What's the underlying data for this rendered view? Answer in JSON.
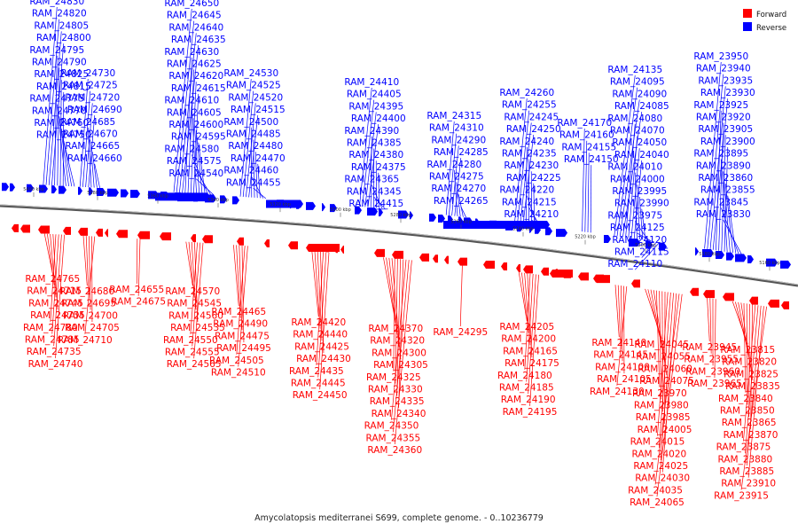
{
  "caption": "Amycolatopsis mediterranei S699, complete genome. - 0..10236779",
  "legend": {
    "forward": {
      "label": "Forward",
      "color": "#ff0000"
    },
    "reverse": {
      "label": "Reverse",
      "color": "#0000ff"
    }
  },
  "ticks": [
    "5400 kbp",
    "5380 kbp",
    "5360 kbp",
    "5340 kbp",
    "5320 kbp",
    "5300 kbp",
    "5280 kbp",
    "5260 kbp",
    "5240 kbp",
    "5220 kbp",
    "5200 kbp",
    "5180 kbp",
    "5160 kbp"
  ],
  "reverse_labels": [
    [
      "RAM_24830",
      "RAM_24820",
      "RAM_24805",
      "RAM_24800",
      "RAM_24795",
      "RAM_24790",
      "RAM_24825",
      "RAM_24815",
      "RAM_24775",
      "RAM_24770",
      "RAM_24760",
      "RAM_24750"
    ],
    [
      "RAM_24730",
      "RAM_24725",
      "RAM_24720",
      "RAM_24690",
      "RAM_24685",
      "RAM_24670",
      "RAM_24665",
      "RAM_24660"
    ],
    [
      "RAM_24650",
      "RAM_24645",
      "RAM_24640",
      "RAM_24635",
      "RAM_24630",
      "RAM_24625",
      "RAM_24620",
      "RAM_24615",
      "RAM_24610",
      "RAM_24605",
      "RAM_24600",
      "RAM_24595",
      "RAM_24580",
      "RAM_24575",
      "RAM_24540"
    ],
    [
      "RAM_24530",
      "RAM_24525",
      "RAM_24520",
      "RAM_24515",
      "RAM_24500",
      "RAM_24485",
      "RAM_24480",
      "RAM_24470",
      "RAM_24460",
      "RAM_24455"
    ],
    [
      "RAM_24410",
      "RAM_24405",
      "RAM_24395",
      "RAM_24400",
      "RAM_24390",
      "RAM_24385",
      "RAM_24380",
      "RAM_24375",
      "RAM_24365",
      "RAM_24345",
      "RAM_24415"
    ],
    [
      "RAM_24315",
      "RAM_24310",
      "RAM_24290",
      "RAM_24285",
      "RAM_24280",
      "RAM_24275",
      "RAM_24270",
      "RAM_24265"
    ],
    [
      "RAM_24260",
      "RAM_24255",
      "RAM_24245",
      "RAM_24250",
      "RAM_24240",
      "RAM_24235",
      "RAM_24230",
      "RAM_24225",
      "RAM_24220",
      "RAM_24215",
      "RAM_24210"
    ],
    [
      "RAM_24170",
      "RAM_24160",
      "RAM_24155",
      "RAM_24150"
    ],
    [
      "RAM_24135",
      "RAM_24095",
      "RAM_24090",
      "RAM_24085",
      "RAM_24080",
      "RAM_24070",
      "RAM_24050",
      "RAM_24040",
      "RAM_24010",
      "RAM_24000",
      "RAM_23995",
      "RAM_23990",
      "RAM_23975",
      "RAM_24125",
      "RAM_24120",
      "RAM_24115",
      "RAM_24110"
    ],
    [
      "RAM_23950",
      "RAM_23940",
      "RAM_23935",
      "RAM_23930",
      "RAM_23925",
      "RAM_23920",
      "RAM_23905",
      "RAM_23900",
      "RAM_23895",
      "RAM_23890",
      "RAM_23860",
      "RAM_23855",
      "RAM_23845",
      "RAM_23830"
    ]
  ],
  "forward_labels": [
    [
      "RAM_24765",
      "RAM_24715",
      "RAM_24745",
      "RAM_24755",
      "RAM_24780",
      "RAM_24785",
      "RAM_24735",
      "RAM_24740"
    ],
    [
      "RAM_24680",
      "RAM_24695",
      "RAM_24700",
      "RAM_24705",
      "RAM_24710"
    ],
    [
      "RAM_24655",
      "RAM_24675"
    ],
    [
      "RAM_24570",
      "RAM_24545",
      "RAM_24560",
      "RAM_24535",
      "RAM_24550",
      "RAM_24555",
      "RAM_24565"
    ],
    [
      "RAM_24465",
      "RAM_24490",
      "RAM_24475",
      "RAM_24495",
      "RAM_24505",
      "RAM_24510"
    ],
    [
      "RAM_24420",
      "RAM_24440",
      "RAM_24425",
      "RAM_24430",
      "RAM_24435",
      "RAM_24445",
      "RAM_24450"
    ],
    [
      "RAM_24370",
      "RAM_24320",
      "RAM_24300",
      "RAM_24305",
      "RAM_24325",
      "RAM_24330",
      "RAM_24335",
      "RAM_24340",
      "RAM_24350",
      "RAM_24355",
      "RAM_24360"
    ],
    [
      "RAM_24295"
    ],
    [
      "RAM_24205",
      "RAM_24200",
      "RAM_24165",
      "RAM_24175",
      "RAM_24180",
      "RAM_24185",
      "RAM_24190",
      "RAM_24195"
    ],
    [
      "RAM_24140",
      "RAM_24145",
      "RAM_24100",
      "RAM_24105",
      "RAM_24130"
    ],
    [
      "RAM_24045",
      "RAM_24055",
      "RAM_24060",
      "RAM_24075",
      "RAM_23970",
      "RAM_23980",
      "RAM_23985",
      "RAM_24005",
      "RAM_24015",
      "RAM_24020",
      "RAM_24025",
      "RAM_24030",
      "RAM_24035",
      "RAM_24065"
    ],
    [
      "RAM_23945",
      "RAM_23955",
      "RAM_23960",
      "RAM_23965"
    ],
    [
      "RAM_23815",
      "RAM_23820",
      "RAM_23825",
      "RAM_23835",
      "RAM_23840",
      "RAM_23850",
      "RAM_23865",
      "RAM_23870",
      "RAM_23875",
      "RAM_23880",
      "RAM_23885",
      "RAM_23910",
      "RAM_23915"
    ]
  ]
}
